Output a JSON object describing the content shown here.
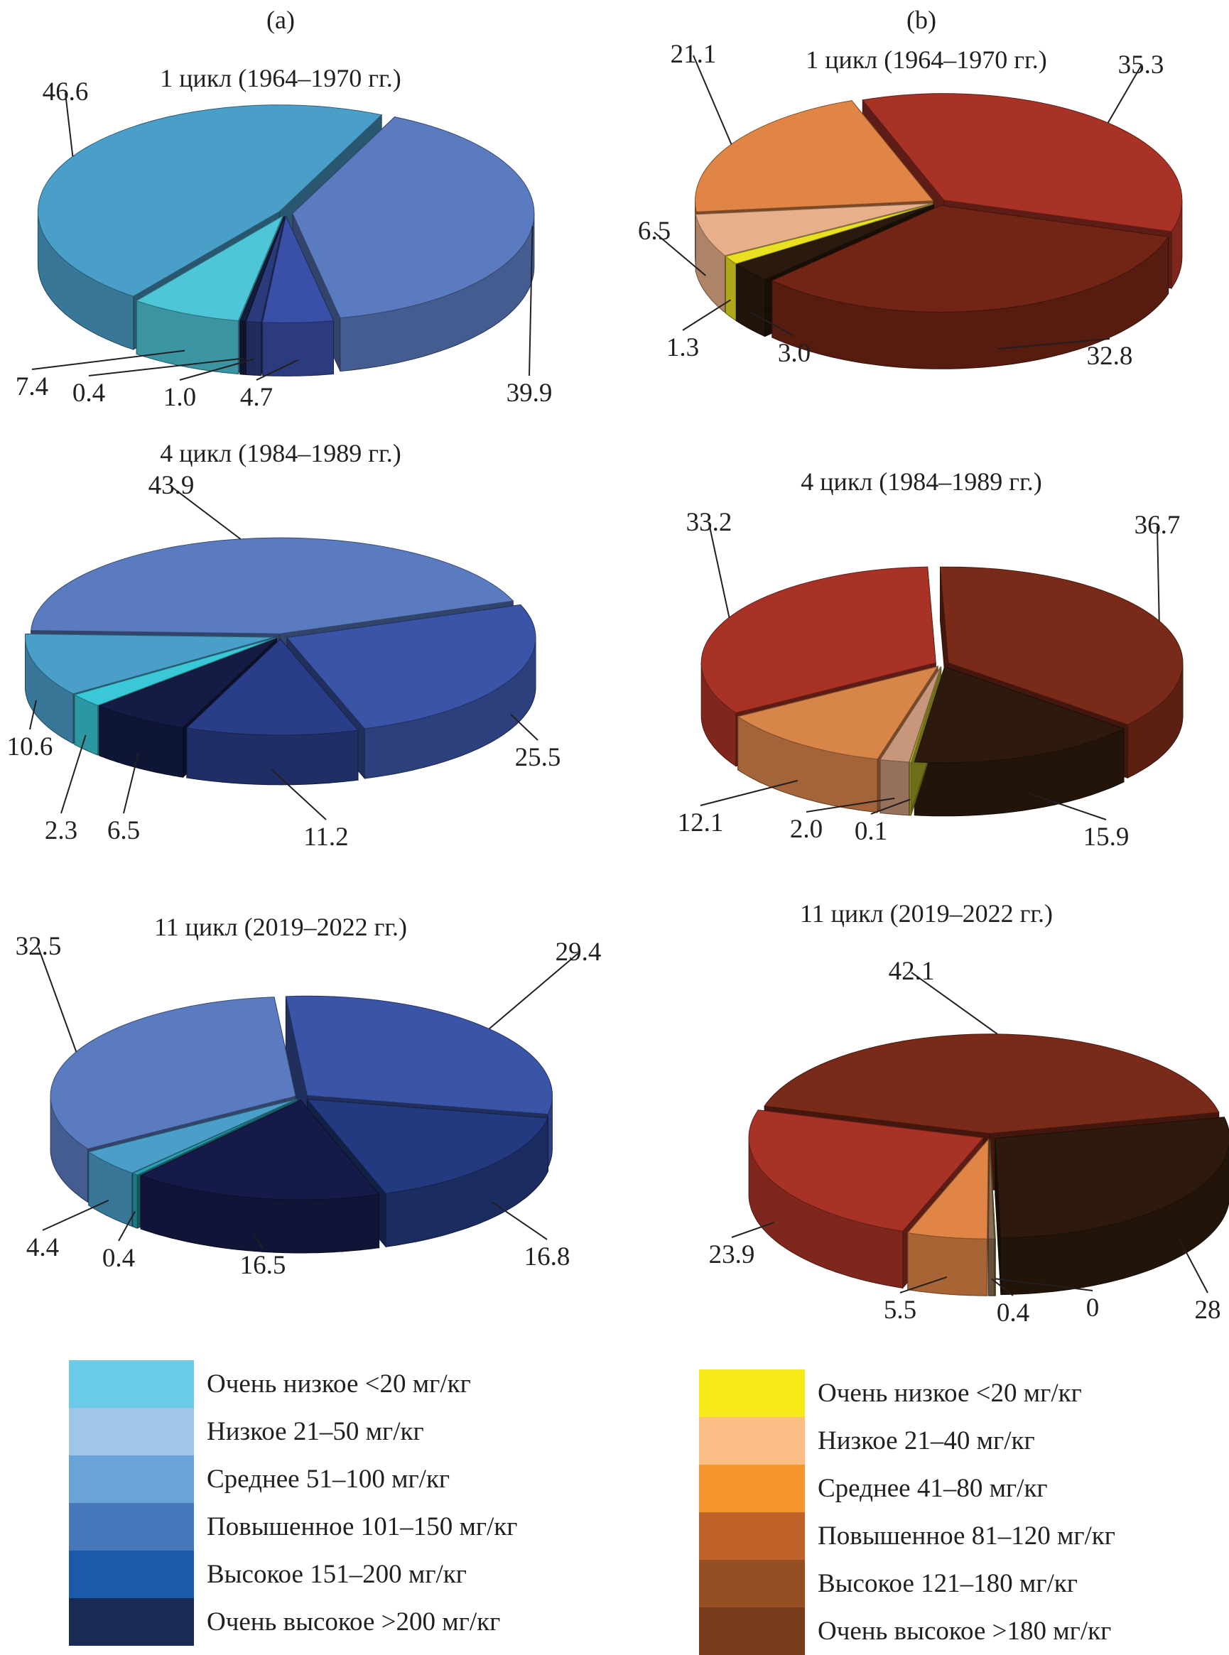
{
  "panels": {
    "a": "(a)",
    "b": "(b)"
  },
  "chart_data": [
    {
      "type": "pie",
      "panel": "a",
      "title": "1 цикл (1964–1970 гг.)",
      "slices": [
        {
          "value": 39.9,
          "label": "39.9",
          "color": "#5a7bbf"
        },
        {
          "value": 4.7,
          "label": "4.7",
          "color": "#3a4fa8"
        },
        {
          "value": 1.0,
          "label": "1.0",
          "color": "#2b3a7a"
        },
        {
          "value": 0.4,
          "label": "0.4",
          "color": "#141c3c"
        },
        {
          "value": 7.4,
          "label": "7.4",
          "color": "#4fc5d8"
        },
        {
          "value": 46.6,
          "label": "46.6",
          "color": "#4a9fc9"
        }
      ]
    },
    {
      "type": "pie",
      "panel": "b",
      "title": "1 цикл (1964–1970 гг.)",
      "slices": [
        {
          "value": 35.3,
          "label": "35.3",
          "color": "#a93226"
        },
        {
          "value": 32.8,
          "label": "32.8",
          "color": "#722515"
        },
        {
          "value": 3.0,
          "label": "3.0",
          "color": "#2a1a0e"
        },
        {
          "value": 1.3,
          "label": "1.3",
          "color": "#e8e020"
        },
        {
          "value": 6.5,
          "label": "6.5",
          "color": "#e8b08a"
        },
        {
          "value": 21.1,
          "label": "21.1",
          "color": "#e08545"
        }
      ]
    },
    {
      "type": "pie",
      "panel": "a",
      "title": "4 цикл (1984–1989 гг.)",
      "slices": [
        {
          "value": 25.5,
          "label": "25.5",
          "color": "#3a55a8"
        },
        {
          "value": 11.2,
          "label": "11.2",
          "color": "#2a3d88"
        },
        {
          "value": 6.5,
          "label": "6.5",
          "color": "#141c46"
        },
        {
          "value": 2.3,
          "label": "2.3",
          "color": "#3ac8d8"
        },
        {
          "value": 10.6,
          "label": "10.6",
          "color": "#4a9fc9"
        },
        {
          "value": 43.9,
          "label": "43.9",
          "color": "#5a7bbf"
        }
      ]
    },
    {
      "type": "pie",
      "panel": "b",
      "title": "4 цикл (1984–1989 гг.)",
      "slices": [
        {
          "value": 36.7,
          "label": "36.7",
          "color": "#7a2a18"
        },
        {
          "value": 15.9,
          "label": "15.9",
          "color": "#2e1a0c"
        },
        {
          "value": 0.1,
          "label": "0.1",
          "color": "#c8c830"
        },
        {
          "value": 2.0,
          "label": "2.0",
          "color": "#c8967a"
        },
        {
          "value": 12.1,
          "label": "12.1",
          "color": "#d8854a"
        },
        {
          "value": 33.2,
          "label": "33.2",
          "color": "#a93226"
        }
      ]
    },
    {
      "type": "pie",
      "panel": "a",
      "title": "11 цикл (2019–2022 гг.)",
      "slices": [
        {
          "value": 29.4,
          "label": "29.4",
          "color": "#3a55a8"
        },
        {
          "value": 16.8,
          "label": "16.8",
          "color": "#233a80"
        },
        {
          "value": 16.5,
          "label": "16.5",
          "color": "#151a48"
        },
        {
          "value": 0.4,
          "label": "0.4",
          "color": "#2aa0b0"
        },
        {
          "value": 4.4,
          "label": "4.4",
          "color": "#4a9fc9"
        },
        {
          "value": 32.5,
          "label": "32.5",
          "color": "#5a7bbf"
        }
      ]
    },
    {
      "type": "pie",
      "panel": "b",
      "title": "11 цикл (2019–2022 гг.)",
      "slices": [
        {
          "value": 42.1,
          "label": "42.1",
          "color": "#7a2a18"
        },
        {
          "value": 28,
          "label": "28",
          "color": "#2e1a0c"
        },
        {
          "value": 0,
          "label": "0",
          "color": "#7a8a30"
        },
        {
          "value": 0.4,
          "label": "0.4",
          "color": "#8a6a50"
        },
        {
          "value": 5.5,
          "label": "5.5",
          "color": "#e08545"
        },
        {
          "value": 23.9,
          "label": "23.9",
          "color": "#a93226"
        }
      ]
    }
  ],
  "legends": {
    "a": [
      {
        "label": "Очень низкое <20 мг/кг",
        "color": "#6acbe8"
      },
      {
        "label": "Низкое 21–50 мг/кг",
        "color": "#9fc6e8"
      },
      {
        "label": "Среднее 51–100 мг/кг",
        "color": "#6aa3d8"
      },
      {
        "label": "Повышенное 101–150 мг/кг",
        "color": "#4677bb"
      },
      {
        "label": "Высокое 151–200 мг/кг",
        "color": "#1b5aa8"
      },
      {
        "label": "Очень высокое >200 мг/кг",
        "color": "#182b52"
      }
    ],
    "b": [
      {
        "label": "Очень низкое <20 мг/кг",
        "color": "#f5ea18"
      },
      {
        "label": "Низкое 21–40 мг/кг",
        "color": "#fbbf86"
      },
      {
        "label": "Среднее 41–80 мг/кг",
        "color": "#f5962f"
      },
      {
        "label": "Повышенное 81–120 мг/кг",
        "color": "#c0632a"
      },
      {
        "label": "Высокое 121–180 мг/кг",
        "color": "#964f23"
      },
      {
        "label": "Очень высокое >180 мг/кг",
        "color": "#783b1b"
      }
    ]
  }
}
